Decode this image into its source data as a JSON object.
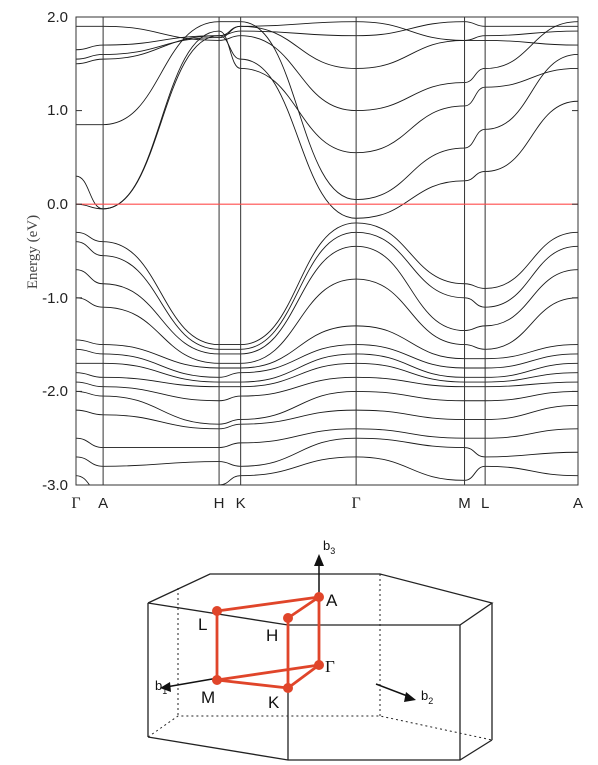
{
  "chart_data": {
    "type": "line",
    "ylabel": "Energy (eV)",
    "ylim": [
      -3.0,
      2.0
    ],
    "yticks": [
      "2.0",
      "1.0",
      "0.0",
      "-1.0",
      "-2.0",
      "-3.0"
    ],
    "ytick_values": [
      2.0,
      1.0,
      0.0,
      -1.0,
      -2.0,
      -3.0
    ],
    "fermi_level": 0.0,
    "fermi_color": "#ff4d4d",
    "kpoints": [
      {
        "label": "Γ",
        "pos": 0.0
      },
      {
        "label": "A",
        "pos": 0.054
      },
      {
        "label": "H",
        "pos": 0.285
      },
      {
        "label": "K",
        "pos": 0.328
      },
      {
        "label": "Γ",
        "pos": 0.558
      },
      {
        "label": "M",
        "pos": 0.774
      },
      {
        "label": "L",
        "pos": 0.815
      },
      {
        "label": "A",
        "pos": 1.0
      }
    ],
    "bands": [
      {
        "nodes": [
          0.3,
          -0.05,
          1.85,
          1.45,
          0.55,
          1.05,
          1.25,
          1.45
        ]
      },
      {
        "nodes": [
          0.85,
          0.85,
          1.95,
          1.95,
          0.05,
          0.6,
          0.8,
          1.6
        ]
      },
      {
        "nodes": [
          1.5,
          1.55,
          1.8,
          1.85,
          1.8,
          1.95,
          1.9,
          1.9
        ]
      },
      {
        "nodes": [
          1.9,
          1.9,
          1.75,
          1.8,
          1.0,
          1.3,
          1.45,
          1.95
        ]
      },
      {
        "nodes": [
          1.55,
          1.6,
          1.78,
          1.9,
          1.45,
          1.75,
          1.75,
          1.7
        ]
      },
      {
        "nodes": [
          1.65,
          1.7,
          1.8,
          1.9,
          1.95,
          1.75,
          1.8,
          1.85
        ]
      },
      {
        "nodes": [
          0.0,
          -0.05,
          1.8,
          1.55,
          -0.15,
          0.25,
          0.35,
          1.1
        ]
      },
      {
        "nodes": [
          -0.3,
          -0.4,
          -1.5,
          -1.5,
          -0.2,
          -0.85,
          -0.9,
          -0.3
        ]
      },
      {
        "nodes": [
          -0.4,
          -0.55,
          -1.55,
          -1.55,
          -0.3,
          -1.0,
          -1.1,
          -0.45
        ]
      },
      {
        "nodes": [
          -0.7,
          -0.85,
          -1.6,
          -1.6,
          -0.45,
          -1.35,
          -1.3,
          -0.7
        ]
      },
      {
        "nodes": [
          -1.0,
          -1.1,
          -1.7,
          -1.7,
          -0.8,
          -1.5,
          -1.55,
          -1.0
        ]
      },
      {
        "nodes": [
          -1.45,
          -1.5,
          -1.75,
          -1.75,
          -1.3,
          -1.65,
          -1.65,
          -1.5
        ]
      },
      {
        "nodes": [
          -1.55,
          -1.6,
          -1.85,
          -1.8,
          -1.5,
          -1.75,
          -1.75,
          -1.6
        ]
      },
      {
        "nodes": [
          -1.7,
          -1.7,
          -1.9,
          -1.9,
          -1.6,
          -1.85,
          -1.85,
          -1.7
        ]
      },
      {
        "nodes": [
          -1.8,
          -1.85,
          -1.95,
          -1.95,
          -1.7,
          -1.9,
          -1.9,
          -1.8
        ]
      },
      {
        "nodes": [
          -1.9,
          -1.95,
          -2.1,
          -2.05,
          -1.85,
          -1.95,
          -1.95,
          -1.9
        ]
      },
      {
        "nodes": [
          -2.0,
          -2.05,
          -2.35,
          -2.3,
          -2.0,
          -2.1,
          -2.1,
          -2.0
        ]
      },
      {
        "nodes": [
          -2.2,
          -2.25,
          -2.4,
          -2.35,
          -2.2,
          -2.3,
          -2.3,
          -2.15
        ]
      },
      {
        "nodes": [
          -2.5,
          -2.6,
          -2.6,
          -2.55,
          -2.4,
          -2.5,
          -2.5,
          -2.4
        ]
      },
      {
        "nodes": [
          -2.7,
          -2.8,
          -2.75,
          -2.8,
          -2.5,
          -2.6,
          -2.7,
          -2.65
        ]
      },
      {
        "nodes": [
          -2.9,
          -3.1,
          -3.0,
          -2.9,
          -2.7,
          -2.95,
          -2.8,
          -2.9
        ]
      }
    ]
  },
  "bz": {
    "points": {
      "gamma": "Γ",
      "a": "A",
      "h": "H",
      "k": "K",
      "l": "L",
      "m": "M"
    },
    "vectors": {
      "b1_main": "b",
      "b1_sub": "1",
      "b2_main": "b",
      "b2_sub": "2",
      "b3_main": "b",
      "b3_sub": "3"
    },
    "path_color": "#e0452a"
  }
}
